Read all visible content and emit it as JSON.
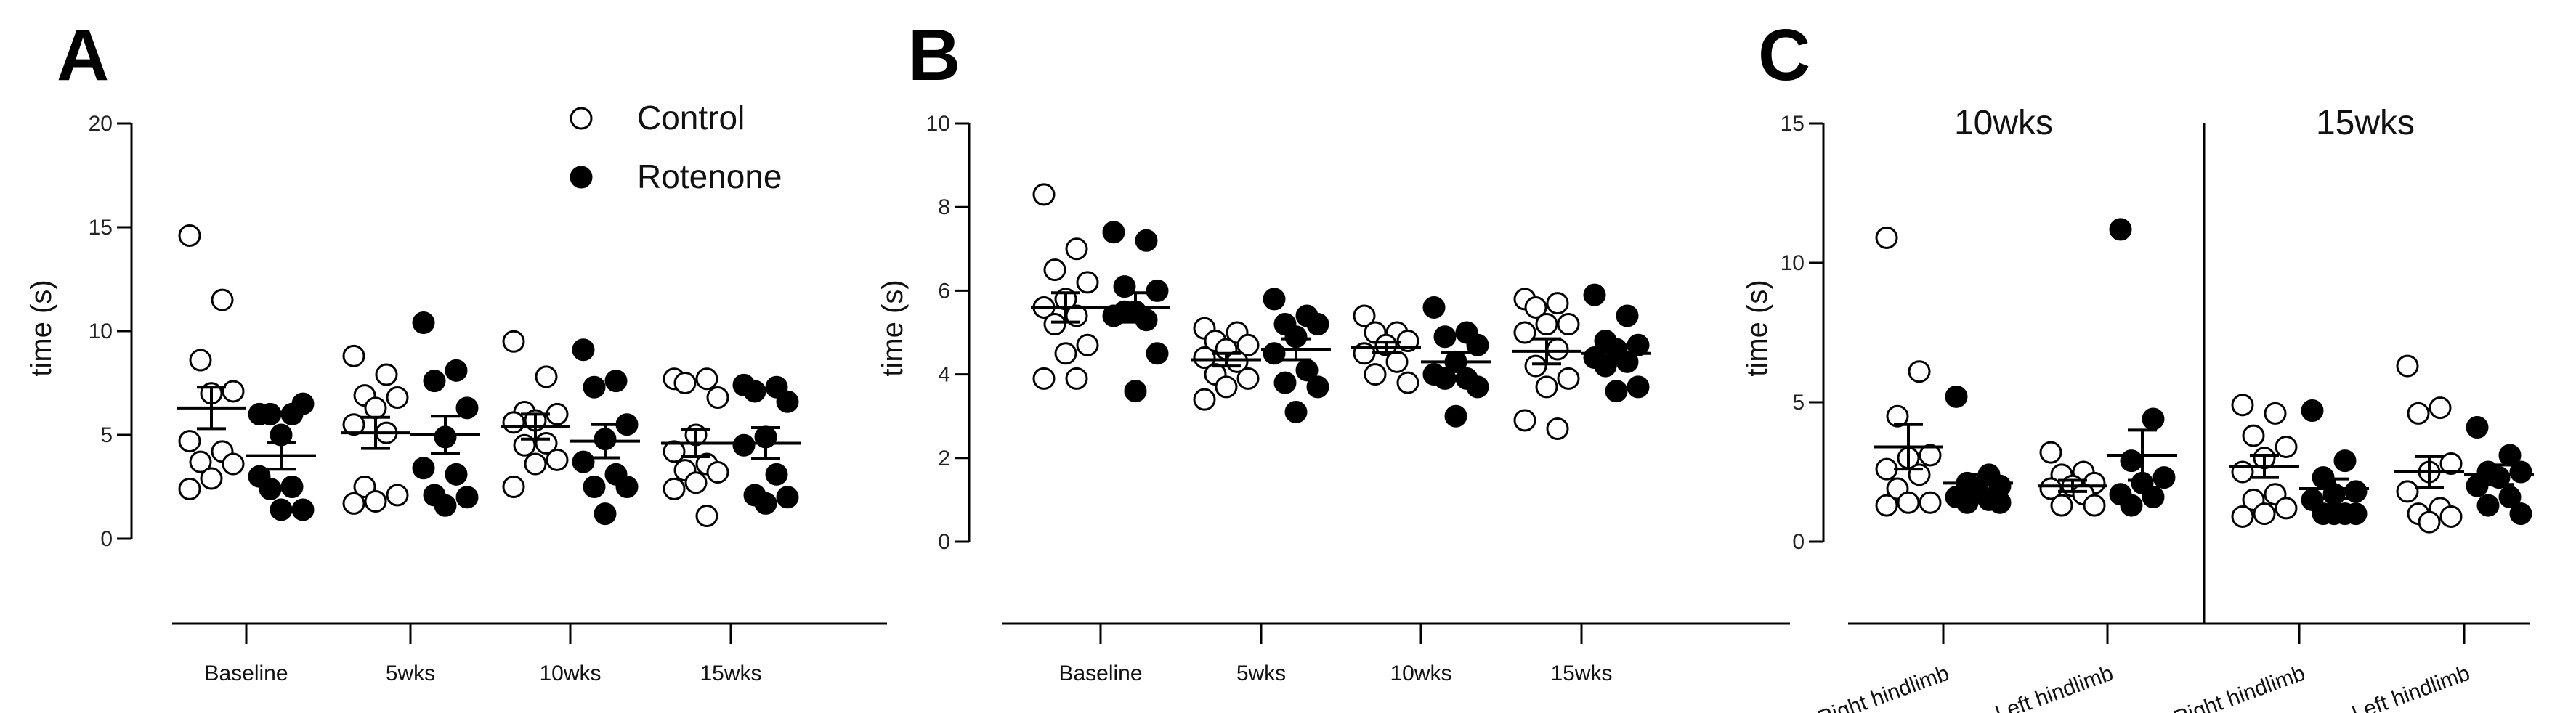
{
  "colors": {
    "control_fill": "#ffffff",
    "rotenone_fill": "#000000",
    "stroke": "#000000"
  },
  "legend": [
    {
      "label": "Control",
      "marker": "open-circle"
    },
    {
      "label": "Rotenone",
      "marker": "filled-circle"
    }
  ],
  "chart_data": [
    {
      "panel": "A",
      "type": "scatter",
      "ylabel": "time (s)",
      "ylim": [
        0,
        20
      ],
      "yticks": [
        0,
        5,
        10,
        15,
        20
      ],
      "categories": [
        "Baseline",
        "5wks",
        "10wks",
        "15wks"
      ],
      "series": [
        {
          "name": "Control",
          "values": [
            [
              14.6,
              11.5,
              8.6,
              7.1,
              7.0,
              4.7,
              4.2,
              3.7,
              3.6,
              2.9,
              2.4
            ],
            [
              8.8,
              7.9,
              6.9,
              6.8,
              6.3,
              5.5,
              5.1,
              2.5,
              2.1,
              1.8,
              1.7
            ],
            [
              9.5,
              7.8,
              6.1,
              6.0,
              5.7,
              5.6,
              4.6,
              4.5,
              3.8,
              3.6,
              2.5
            ],
            [
              7.7,
              7.7,
              7.5,
              6.8,
              5.0,
              4.2,
              3.6,
              3.3,
              3.2,
              2.7,
              2.4,
              1.1
            ]
          ],
          "mean": [
            6.3,
            5.1,
            5.4,
            4.6
          ],
          "sem": [
            1.0,
            0.75,
            0.6,
            0.65
          ]
        },
        {
          "name": "Rotenone",
          "values": [
            [
              6.0,
              6.0,
              6.0,
              6.5,
              5.0,
              3.0,
              2.5,
              2.4,
              1.4,
              1.4
            ],
            [
              10.4,
              8.1,
              7.6,
              6.3,
              4.9,
              3.4,
              3.1,
              2.1,
              2.0,
              1.6
            ],
            [
              9.1,
              7.6,
              7.3,
              5.5,
              4.8,
              3.7,
              3.1,
              2.5,
              2.5,
              1.2
            ],
            [
              7.4,
              7.3,
              7.1,
              6.6,
              4.9,
              4.5,
              3.1,
              2.1,
              2.0,
              1.7
            ]
          ],
          "mean": [
            4.0,
            5.0,
            4.7,
            4.6
          ],
          "sem": [
            0.65,
            0.9,
            0.8,
            0.75
          ]
        }
      ]
    },
    {
      "panel": "B",
      "type": "scatter",
      "ylabel": "time (s)",
      "ylim": [
        0,
        10
      ],
      "yticks": [
        0,
        2,
        4,
        6,
        8,
        10
      ],
      "categories": [
        "Baseline",
        "5wks",
        "10wks",
        "15wks"
      ],
      "series": [
        {
          "name": "Control",
          "values": [
            [
              8.3,
              7.0,
              6.5,
              6.2,
              5.8,
              5.6,
              5.4,
              5.2,
              4.7,
              4.5,
              3.9,
              3.9
            ],
            [
              5.1,
              5.0,
              4.8,
              4.7,
              4.6,
              4.4,
              4.3,
              4.0,
              3.9,
              3.7,
              3.4
            ],
            [
              5.4,
              5.0,
              5.0,
              4.8,
              4.7,
              4.5,
              4.3,
              4.0,
              3.8
            ],
            [
              5.8,
              5.7,
              5.6,
              5.2,
              5.2,
              5.0,
              4.6,
              4.2,
              3.9,
              3.7,
              2.9,
              2.7
            ]
          ],
          "mean": [
            5.6,
            4.35,
            4.65,
            4.55
          ],
          "sem": [
            0.35,
            0.15,
            0.12,
            0.3
          ]
        },
        {
          "name": "Rotenone",
          "values": [
            [
              7.4,
              7.2,
              6.1,
              6.0,
              5.5,
              5.4,
              5.3,
              5.5,
              4.5,
              3.6
            ],
            [
              5.8,
              5.4,
              5.2,
              5.2,
              4.9,
              4.5,
              4.1,
              3.8,
              3.7,
              3.1
            ],
            [
              5.6,
              5.0,
              4.9,
              4.7,
              4.3,
              4.0,
              3.9,
              3.9,
              3.7,
              3.0
            ],
            [
              5.9,
              5.4,
              4.8,
              4.7,
              4.6,
              4.4,
              4.3,
              4.2,
              3.7,
              3.6
            ]
          ],
          "mean": [
            5.6,
            4.6,
            4.3,
            4.5
          ],
          "sem": [
            0.35,
            0.25,
            0.22,
            0.2
          ]
        }
      ]
    },
    {
      "panel": "C",
      "type": "scatter",
      "ylabel": "time (s)",
      "ylim": [
        0,
        15
      ],
      "yticks": [
        0,
        5,
        10,
        15
      ],
      "groups": [
        "10wks",
        "15wks"
      ],
      "categories": [
        "Right hindlimb",
        "Left hindlimb",
        "Right hindlimb",
        "Left hindlimb"
      ],
      "series": [
        {
          "name": "Control",
          "values": [
            [
              10.9,
              6.1,
              4.5,
              3.1,
              3.0,
              2.6,
              2.4,
              1.9,
              1.4,
              1.4,
              1.3
            ],
            [
              3.2,
              2.5,
              2.4,
              2.1,
              2.0,
              1.9,
              1.7,
              1.3,
              1.3
            ],
            [
              4.9,
              4.6,
              3.8,
              3.4,
              3.0,
              2.5,
              1.7,
              1.5,
              1.2,
              1.0,
              0.9
            ],
            [
              6.3,
              4.8,
              4.6,
              2.8,
              2.5,
              1.8,
              1.2,
              1.0,
              0.9,
              0.7
            ]
          ],
          "mean": [
            3.4,
            2.0,
            2.7,
            2.5
          ],
          "sem": [
            0.8,
            0.2,
            0.4,
            0.55
          ]
        },
        {
          "name": "Rotenone",
          "values": [
            [
              5.2,
              2.4,
              2.1,
              2.0,
              1.8,
              1.6,
              1.5,
              1.4,
              1.4
            ],
            [
              11.2,
              4.4,
              2.9,
              2.3,
              2.1,
              1.7,
              1.6,
              1.3
            ],
            [
              4.7,
              2.9,
              2.3,
              1.8,
              1.7,
              1.5,
              1.0,
              1.0,
              1.0,
              1.0
            ],
            [
              4.1,
              3.1,
              2.5,
              2.5,
              2.3,
              2.0,
              1.6,
              1.3,
              1.0
            ]
          ],
          "mean": [
            2.1,
            3.1,
            1.9,
            2.4
          ],
          "sem": [
            0.3,
            0.9,
            0.35,
            0.35
          ]
        }
      ]
    }
  ]
}
